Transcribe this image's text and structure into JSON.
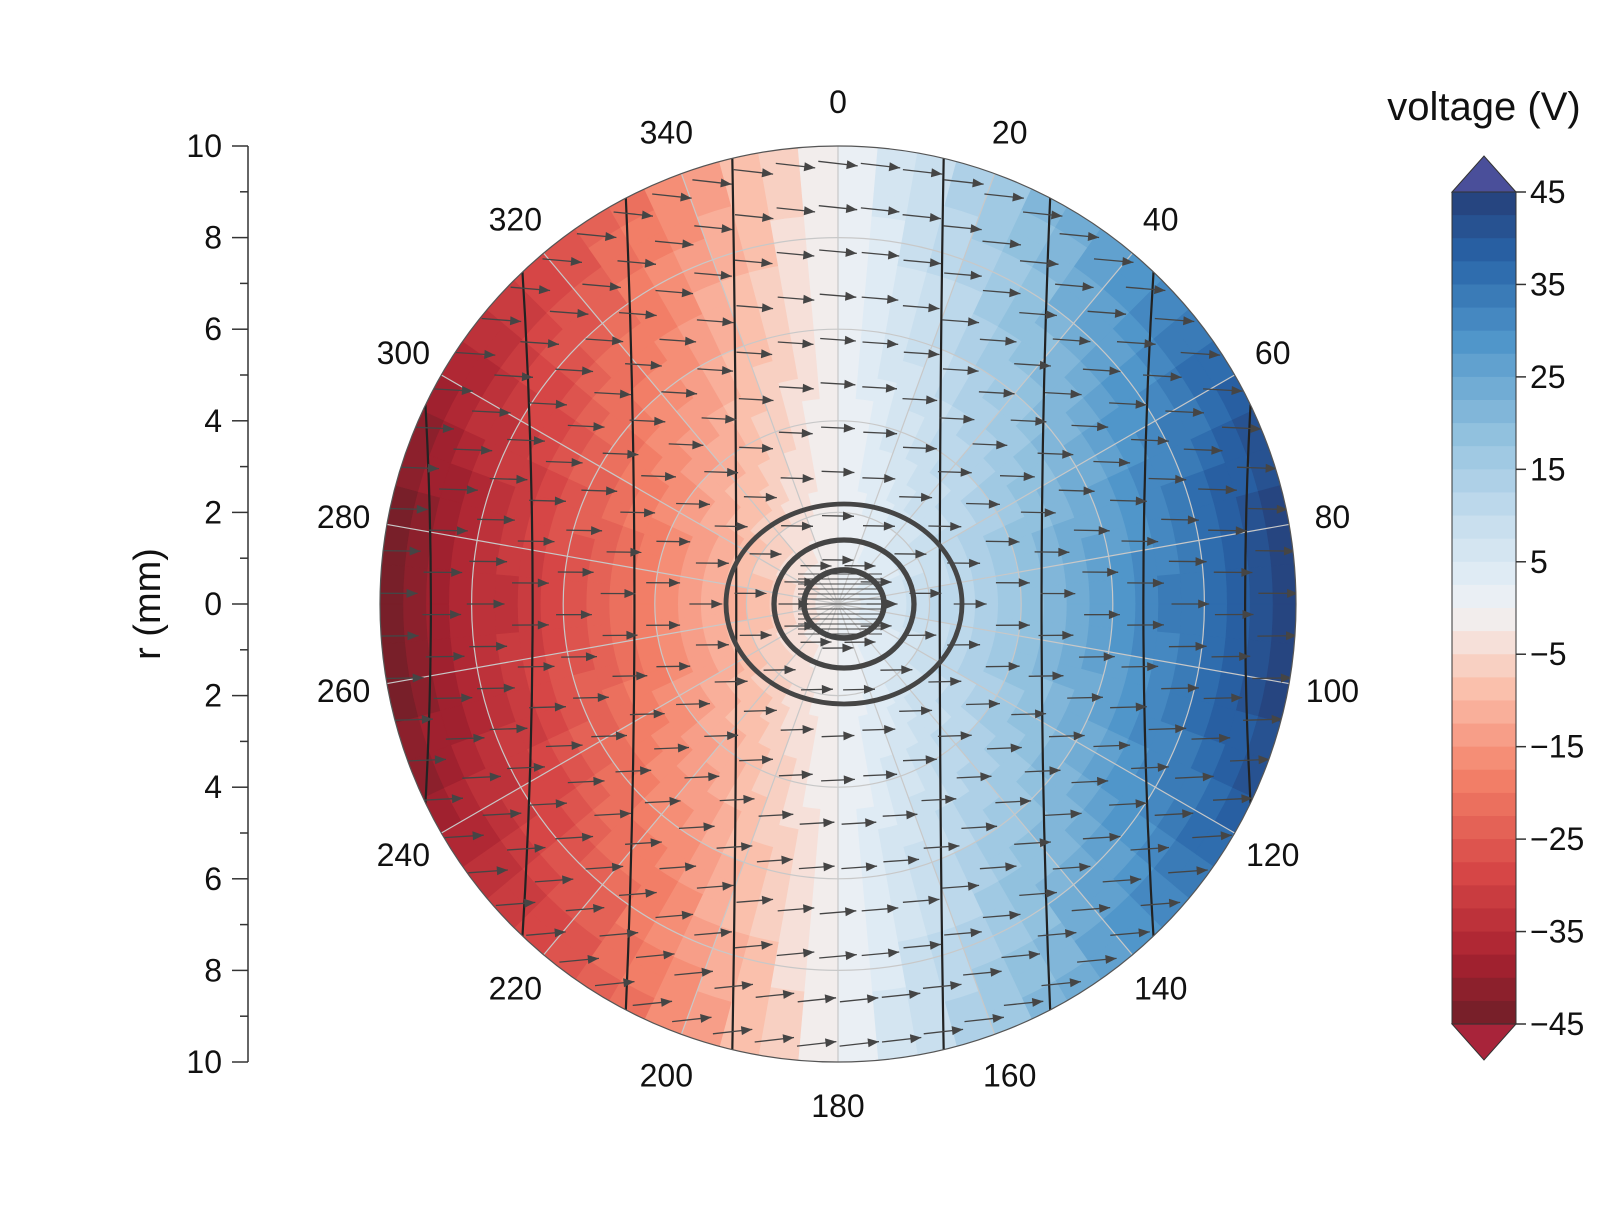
{
  "chart_data": {
    "type": "heatmap",
    "subtype": "polar-contour-with-vector-field",
    "title": "",
    "colorbar": {
      "title": "voltage (V)",
      "range": [
        -45,
        45
      ],
      "tick_labels": [
        "45",
        "35",
        "25",
        "15",
        "5",
        "−5",
        "−15",
        "−25",
        "−35",
        "−45"
      ],
      "tick_values": [
        45,
        35,
        25,
        15,
        5,
        -5,
        -15,
        -25,
        -35,
        -45
      ],
      "extend": "both",
      "colormap": "RdBu",
      "low_color": "#a8243a",
      "high_color": "#4a4f9a",
      "levels": 36
    },
    "radial_axis": {
      "label": "r (mm)",
      "range": [
        0,
        10
      ],
      "tick_labels": [
        "10",
        "8",
        "6",
        "4",
        "2",
        "0",
        "2",
        "4",
        "6",
        "8",
        "10"
      ],
      "tick_values": [
        10,
        8,
        6,
        4,
        2,
        0,
        2,
        4,
        6,
        8,
        10
      ]
    },
    "angular_axis": {
      "unit": "degrees",
      "direction": "clockwise",
      "zero_location": "top",
      "tick_labels": [
        "0",
        "20",
        "40",
        "60",
        "80",
        "100",
        "120",
        "140",
        "160",
        "180",
        "200",
        "220",
        "240",
        "260",
        "280",
        "300",
        "320",
        "340"
      ],
      "tick_values": [
        0,
        20,
        40,
        60,
        80,
        100,
        120,
        140,
        160,
        180,
        200,
        220,
        240,
        260,
        280,
        300,
        320,
        340
      ]
    },
    "field": {
      "description_values": "voltage rises linearly from left to right",
      "voltage_at_left_edge": -45,
      "voltage_at_right_edge": 45,
      "contour_levels": [
        -40,
        -30,
        -20,
        -10,
        10,
        20,
        30,
        40
      ],
      "vector_direction": "left-to-right",
      "grid": true
    },
    "colors": {
      "contour_line": "#222222",
      "arrow": "#454545",
      "grid_line": "#c8c8c8"
    }
  }
}
